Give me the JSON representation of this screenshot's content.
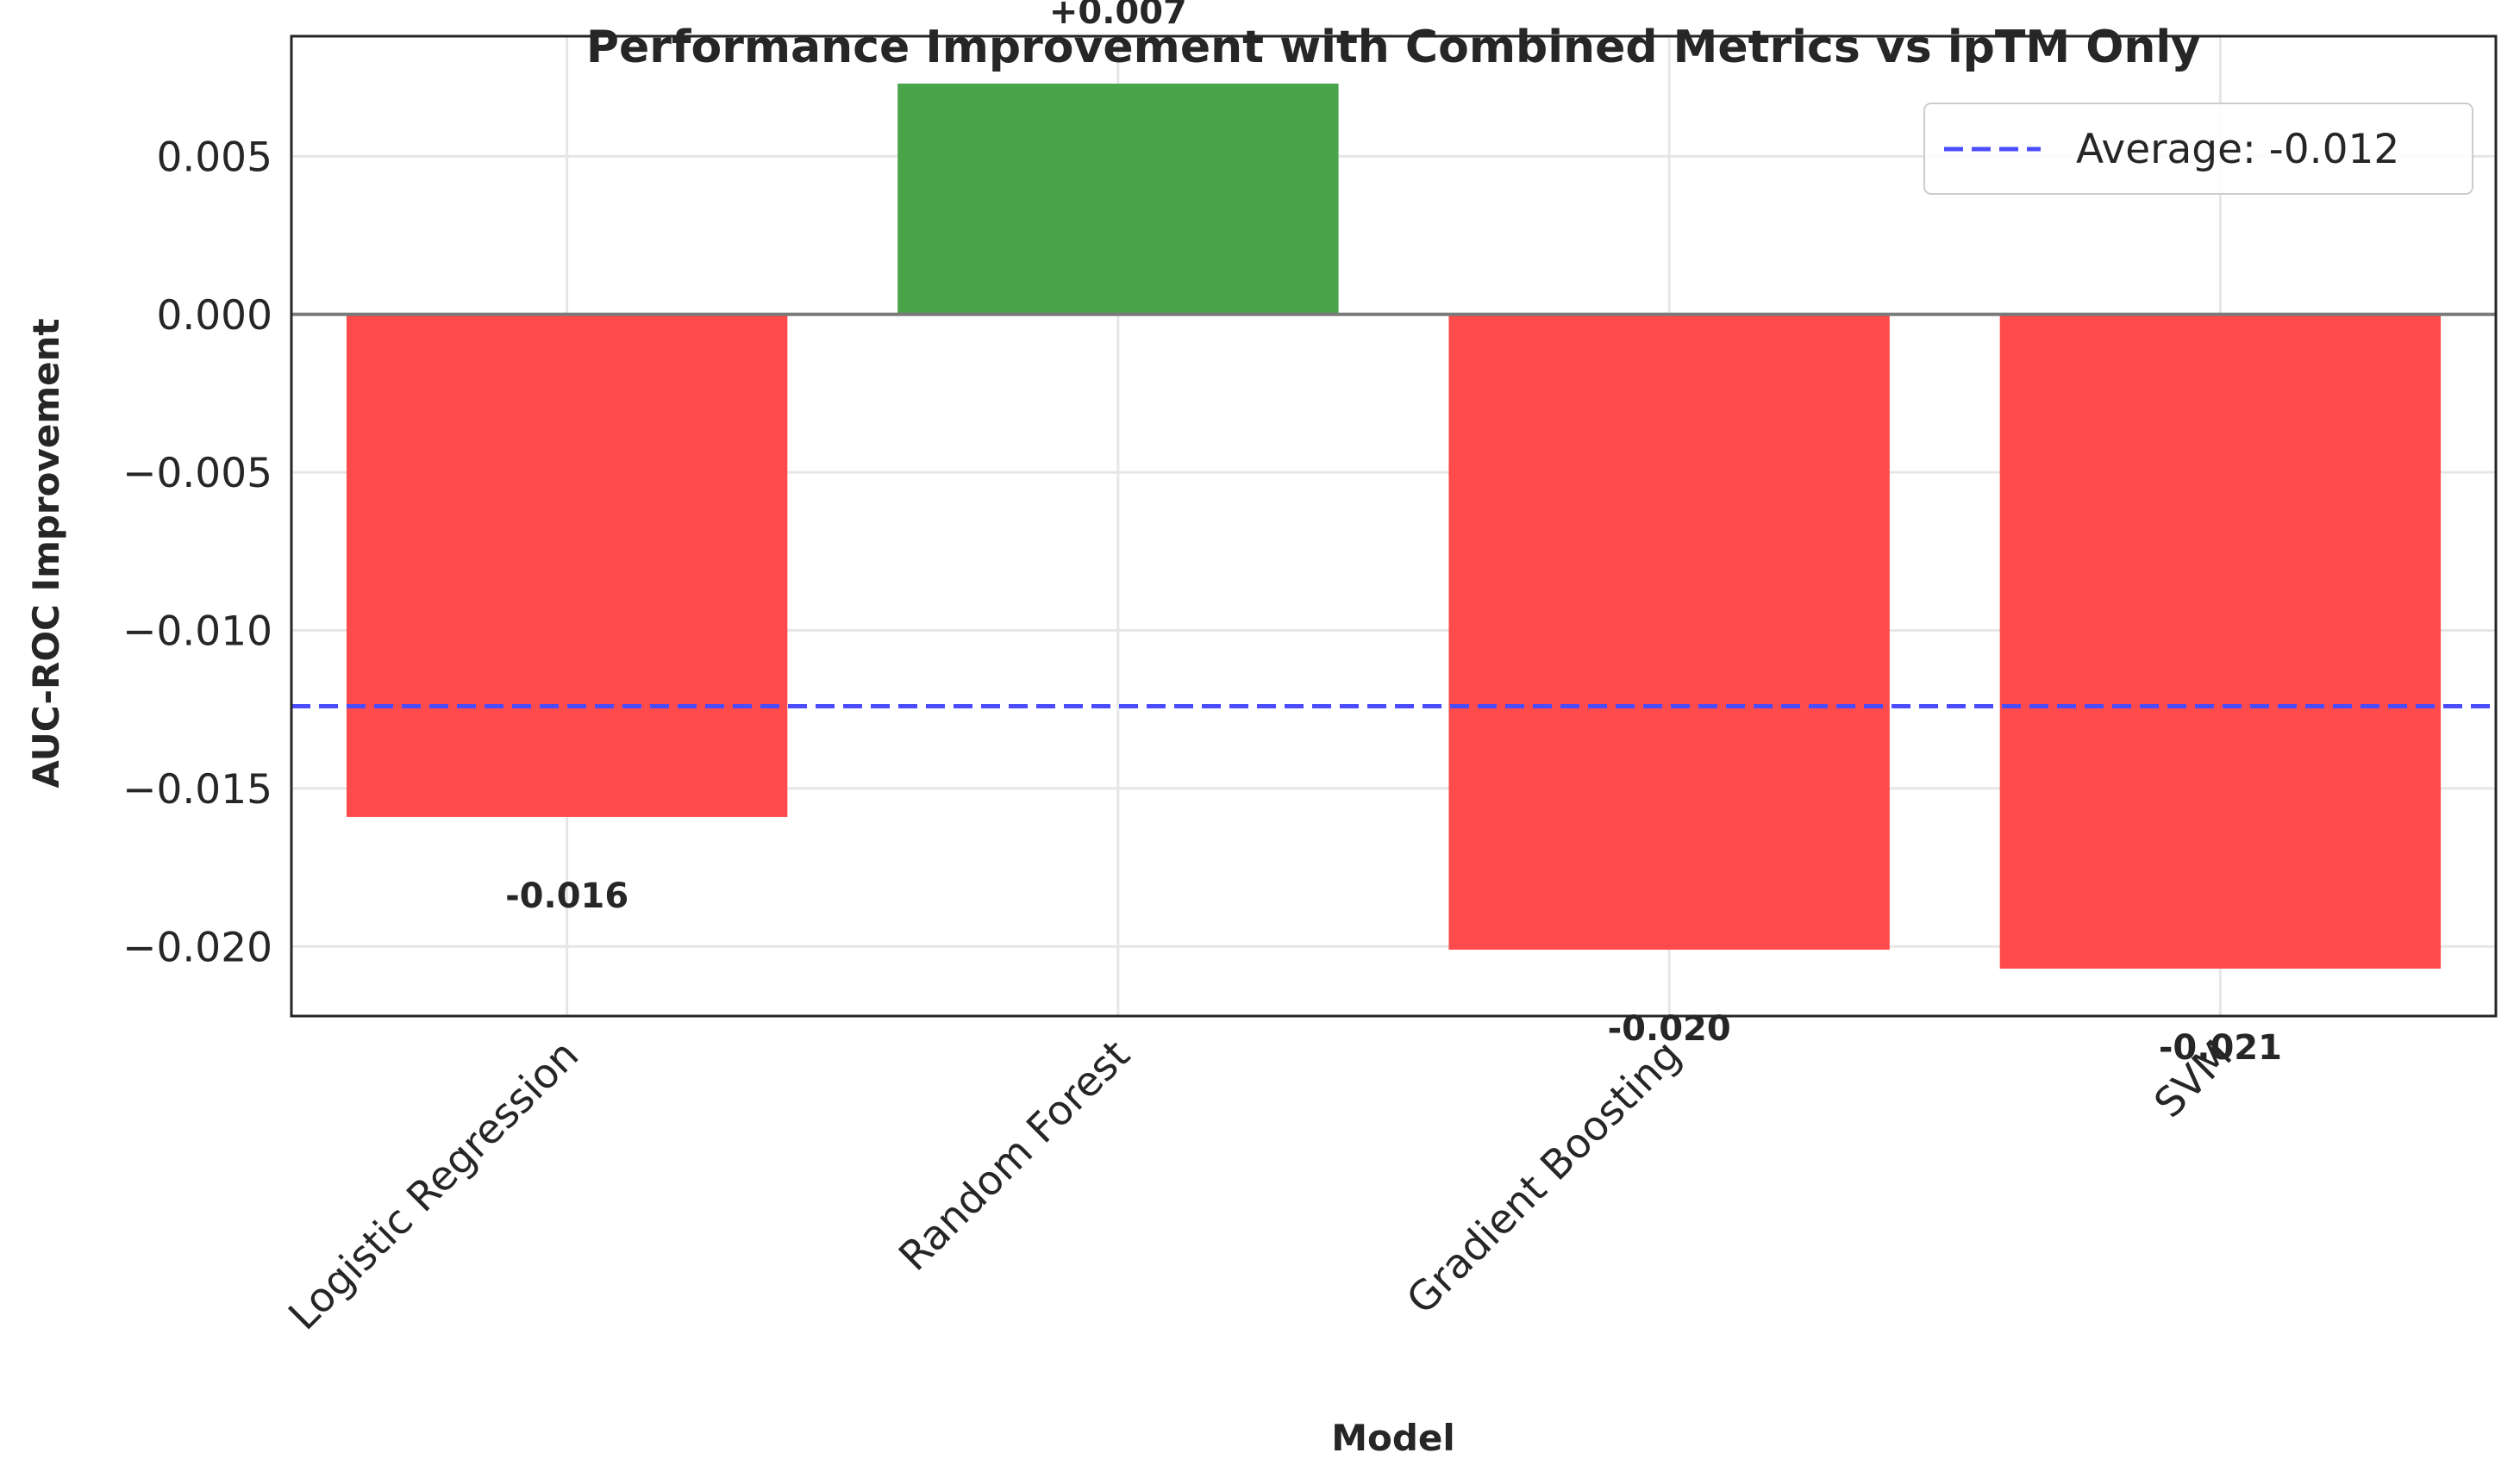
{
  "chart_data": {
    "type": "bar",
    "title": "Performance Improvement with Combined Metrics vs ipTM Only",
    "xlabel": "Model",
    "ylabel": "AUC-ROC Improvement",
    "categories": [
      "Logistic Regression",
      "Random Forest",
      "Gradient Boosting",
      "SVM"
    ],
    "values": [
      -0.0159,
      0.0073,
      -0.0201,
      -0.0207
    ],
    "value_labels": [
      "-0.016",
      "+0.007",
      "-0.020",
      "-0.021"
    ],
    "bar_colors": [
      "#ff4b4b",
      "#4aa44a",
      "#ff4b4b",
      "#ff4b4b"
    ],
    "ylim": [
      -0.0222,
      0.0088
    ],
    "yticks": [
      0.005,
      0.0,
      -0.005,
      -0.01,
      -0.015,
      -0.02
    ],
    "ytick_labels": [
      "0.005",
      "0.000",
      "−0.005",
      "−0.010",
      "−0.015",
      "−0.020"
    ],
    "average": {
      "value": -0.0124,
      "label": "Average: -0.012",
      "color": "#4b4bff"
    },
    "legend_position": "top-right",
    "grid": true,
    "zero_line_color": "#7a7a7a"
  }
}
